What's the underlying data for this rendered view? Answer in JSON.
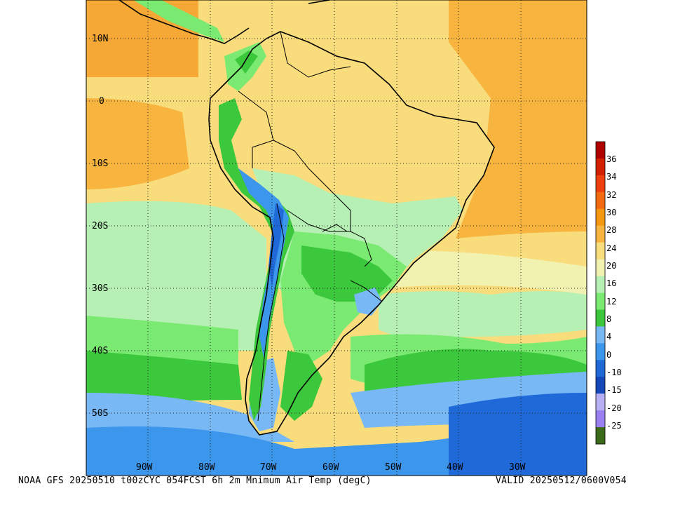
{
  "footer": {
    "product": "NOAA GFS 20250510 t00zCYC 054FCST 6h 2m Mnimum Air Temp (degC)",
    "valid": "VALID 20250512/0600V054"
  },
  "map": {
    "lat_labels": [
      "10N",
      "0",
      "10S",
      "20S",
      "30S",
      "40S",
      "50S"
    ],
    "lon_labels": [
      "90W",
      "80W",
      "70W",
      "60W",
      "50W",
      "40W",
      "30W"
    ],
    "grid": "dotted",
    "region": "South America"
  },
  "colorbar": {
    "labels": [
      "36",
      "34",
      "32",
      "30",
      "28",
      "24",
      "20",
      "16",
      "12",
      "8",
      "4",
      "0",
      "-10",
      "-15",
      "-20",
      "-25"
    ],
    "colors": [
      "#b00000",
      "#d42000",
      "#f04010",
      "#f56a10",
      "#f59a10",
      "#f7b540",
      "#f9dc7c",
      "#f2f2b0",
      "#b7f0b4",
      "#7bea72",
      "#3cc83c",
      "#78b8f4",
      "#3c96ec",
      "#1f6ad8",
      "#1548b8",
      "#b8b0f4",
      "#9a80f0",
      "#3a6a1a"
    ]
  }
}
